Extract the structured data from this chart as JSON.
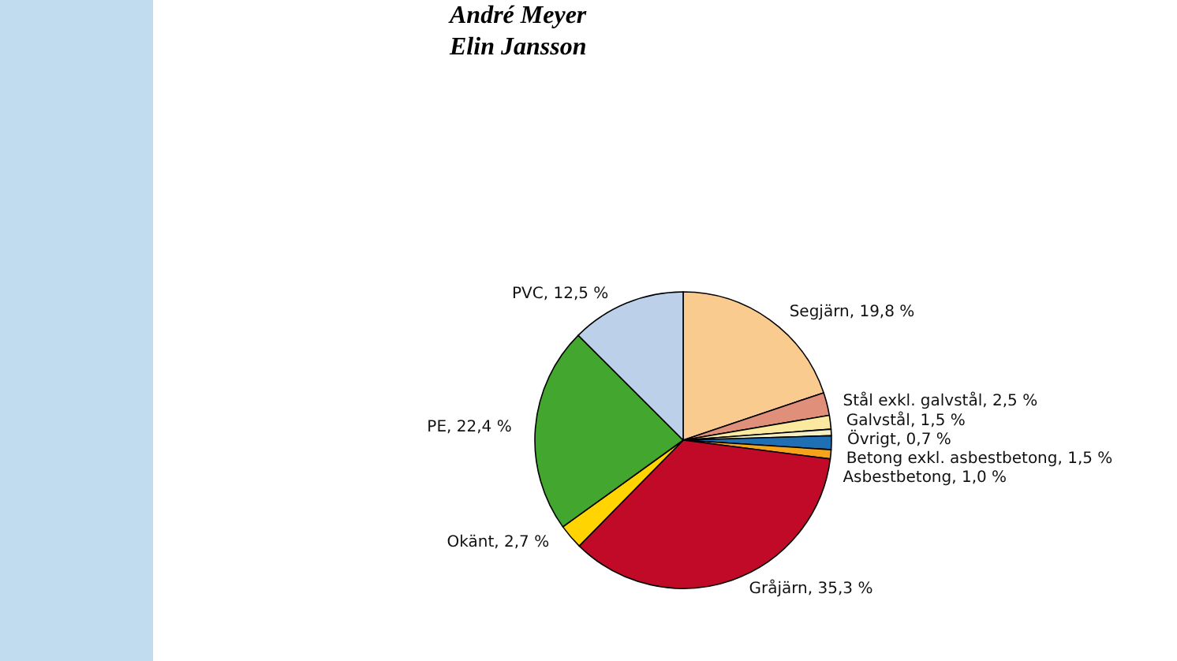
{
  "chart_data": {
    "type": "pie",
    "annotations": [
      "André Meyer",
      "Elin Jansson"
    ],
    "categories": [
      "Segjärn",
      "Stål exkl. galvstål",
      "Galvstål",
      "Övrigt",
      "Betong exkl. asbestbetong",
      "Asbestbetong",
      "Gråjärn",
      "Okänt",
      "PE",
      "PVC"
    ],
    "values": [
      19.8,
      2.5,
      1.5,
      0.7,
      1.5,
      1.0,
      35.3,
      2.7,
      22.4,
      12.5
    ],
    "value_labels": [
      "19,8 %",
      "2,5 %",
      "1,5 %",
      "0,7 %",
      "1,5 %",
      "1,0 %",
      "35,3 %",
      "2,7 %",
      "22,4 %",
      "12,5 %"
    ],
    "colors": [
      "#f9cb8e",
      "#e0907a",
      "#fbe9a0",
      "#f5f0c4",
      "#1f6fb5",
      "#f5a31a",
      "#c00a28",
      "#ffd400",
      "#43a62e",
      "#bcd0ea"
    ]
  }
}
